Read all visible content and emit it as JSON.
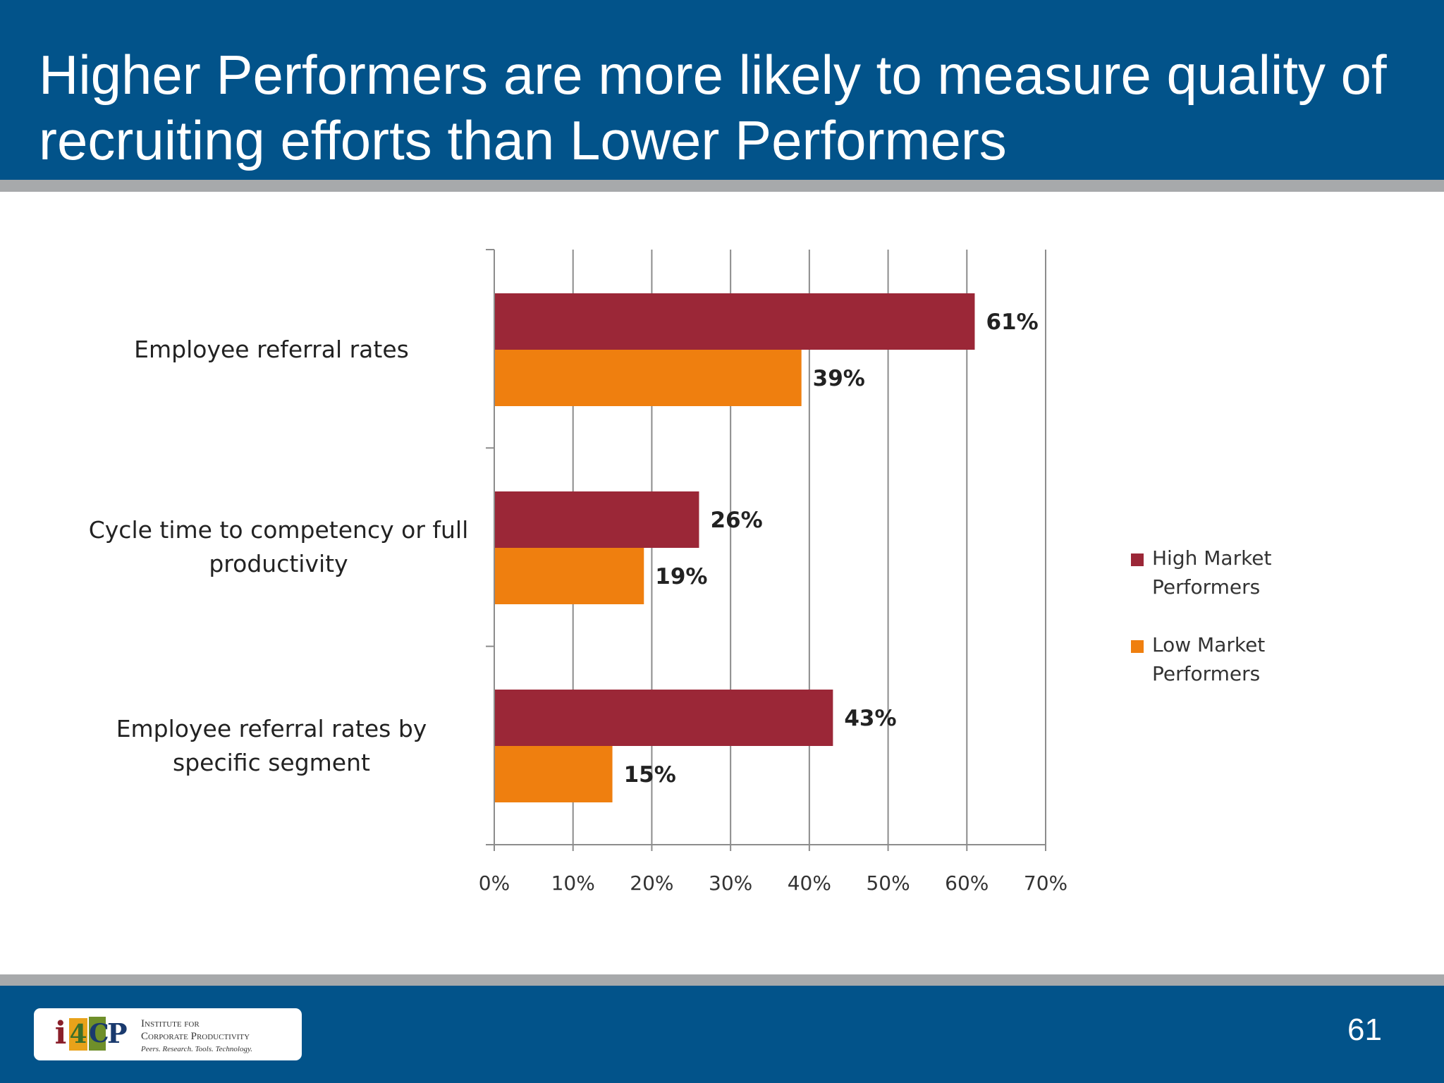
{
  "slide": {
    "title": "Higher Performers are more likely to measure quality of recruiting efforts than Lower Performers",
    "page_number": "61"
  },
  "logo": {
    "mark": [
      "i",
      "4",
      "C",
      "P"
    ],
    "line1": "Institute for",
    "line2": "Corporate Productivity",
    "tagline": "Peers. Research. Tools. Technology."
  },
  "colors": {
    "header_blue": "#02538a",
    "rule_gray": "#a7a9ab",
    "high_series": "#9b2737",
    "low_series": "#ef7f0f"
  },
  "chart_data": {
    "type": "bar",
    "orientation": "horizontal",
    "categories": [
      "Employee referral rates",
      "Cycle time to competency or full productivity",
      "Employee referral rates by specific segment"
    ],
    "series": [
      {
        "name": "High Market Performers",
        "values": [
          61,
          26,
          43
        ],
        "labels": [
          "61%",
          "26%",
          "43%"
        ],
        "color": "#9b2737"
      },
      {
        "name": "Low Market Performers",
        "values": [
          39,
          19,
          15
        ],
        "labels": [
          "39%",
          "19%",
          "15%"
        ],
        "color": "#ef7f0f"
      }
    ],
    "xlim": [
      0,
      70
    ],
    "x_ticks": [
      "0%",
      "10%",
      "20%",
      "30%",
      "40%",
      "50%",
      "60%",
      "70%"
    ],
    "grid": "vertical",
    "legend_position": "right"
  }
}
